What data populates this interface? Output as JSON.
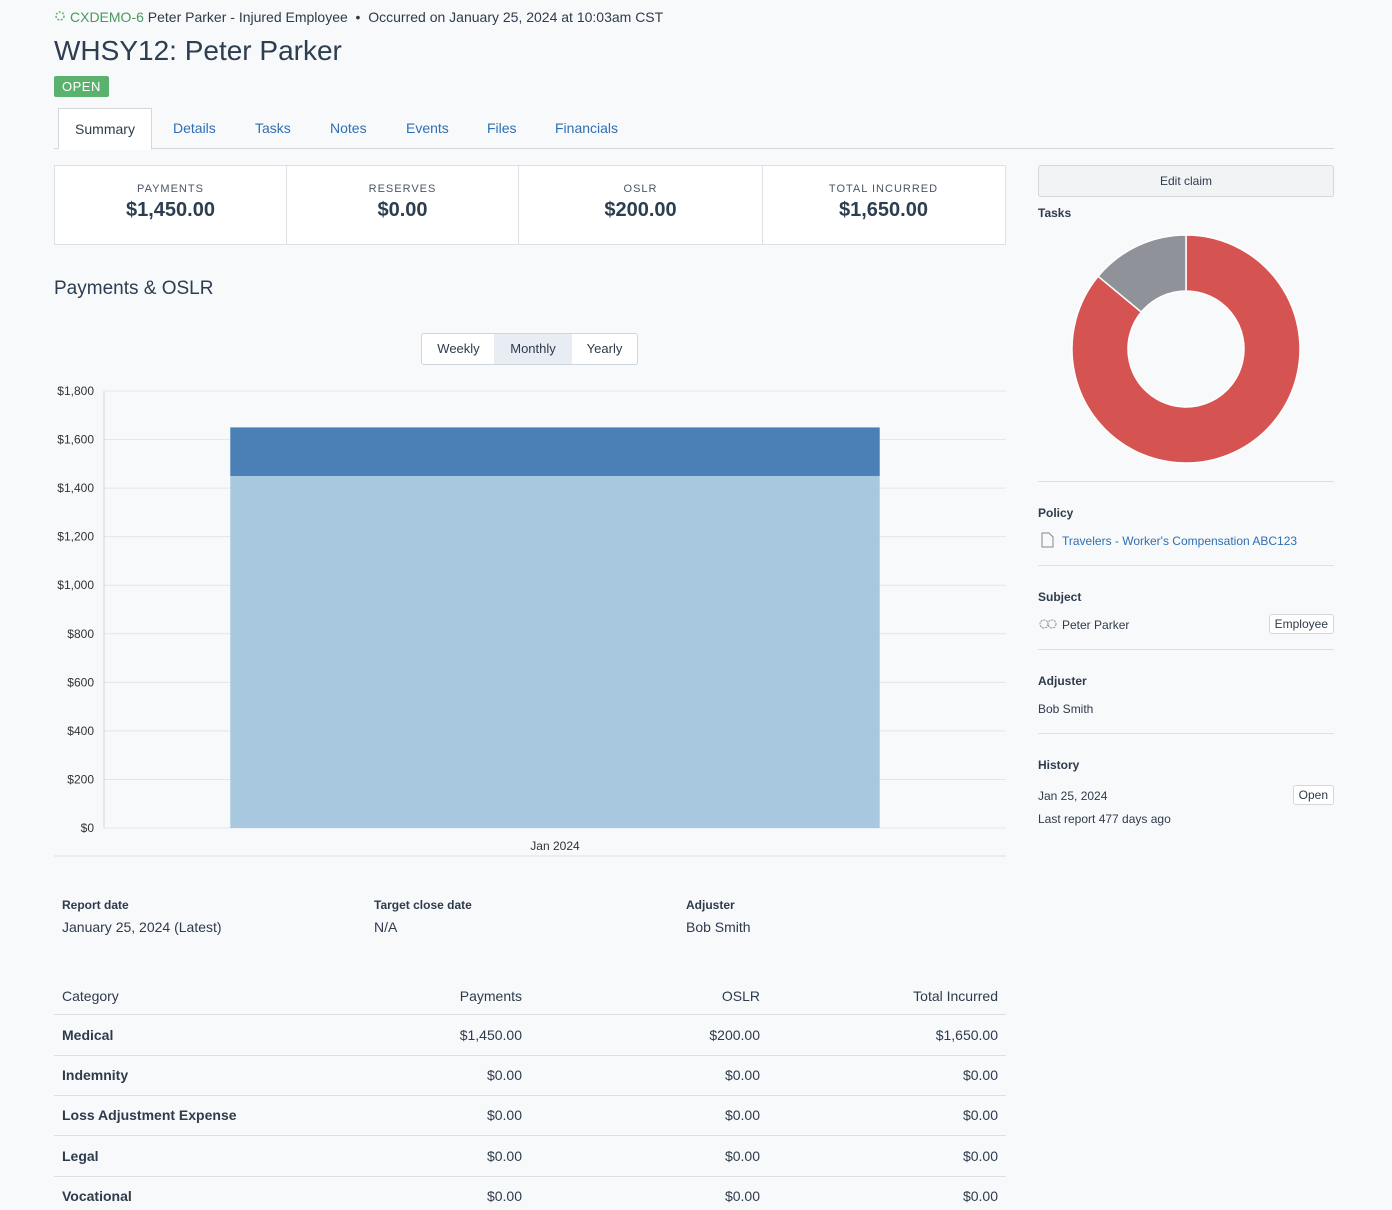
{
  "header": {
    "claim_code": "CXDEMO-6",
    "claim_name": "Peter Parker - Injured Employee",
    "occurred": "Occurred on January 25, 2024 at 10:03am CST",
    "title": "WHSY12: Peter Parker",
    "status": "OPEN"
  },
  "tabs": [
    "Summary",
    "Details",
    "Tasks",
    "Notes",
    "Events",
    "Files",
    "Financials"
  ],
  "summary": [
    {
      "label": "PAYMENTS",
      "value": "$1,450.00"
    },
    {
      "label": "RESERVES",
      "value": "$0.00"
    },
    {
      "label": "OSLR",
      "value": "$200.00"
    },
    {
      "label": "TOTAL INCURRED",
      "value": "$1,650.00"
    }
  ],
  "section_title": "Payments & OSLR",
  "periods": [
    "Weekly",
    "Monthly",
    "Yearly"
  ],
  "chart_data": [
    {
      "type": "stacked-bar",
      "categories": [
        "Jan 2024"
      ],
      "series": [
        {
          "color": "#a8c8df",
          "values": [
            1450
          ]
        },
        {
          "color": "#4a80b5",
          "values": [
            200
          ]
        }
      ],
      "ylim": [
        0,
        1800
      ],
      "yticks": [
        {
          "value": 0,
          "label": "$0"
        },
        {
          "value": 200,
          "label": "$200"
        },
        {
          "value": 400,
          "label": "$400"
        },
        {
          "value": 600,
          "label": "$600"
        },
        {
          "value": 800,
          "label": "$800"
        },
        {
          "value": 1000,
          "label": "$1,000"
        },
        {
          "value": 1200,
          "label": "$1,200"
        },
        {
          "value": 1400,
          "label": "$1,400"
        },
        {
          "value": 1600,
          "label": "$1,600"
        },
        {
          "value": 1800,
          "label": "$1,800"
        }
      ],
      "grid": true
    },
    {
      "type": "donut",
      "title": "Tasks",
      "categories": [
        null,
        null
      ],
      "values": [
        86,
        14
      ],
      "colors": [
        "#d55452",
        "#8f9299"
      ]
    }
  ],
  "sidebar": {
    "edit": "Edit claim",
    "policy": {
      "label": "Policy",
      "value": "Travelers - Worker's Compensation ABC123"
    },
    "subject": {
      "label": "Subject",
      "name": "Peter Parker",
      "role": "Employee"
    },
    "adjuster": {
      "label": "Adjuster",
      "name": "Bob Smith"
    },
    "history": {
      "label": "History",
      "date": "Jan 25, 2024",
      "status": "Open",
      "last_report": "Last report 477 days ago"
    }
  },
  "report": [
    {
      "label": "Report date",
      "value": "January 25, 2024 (Latest)"
    },
    {
      "label": "Target close date",
      "value": "N/A"
    },
    {
      "label": "Adjuster",
      "value": "Bob Smith"
    }
  ],
  "table": {
    "header": [
      "Category",
      "Payments",
      "OSLR",
      "Total Incurred"
    ],
    "rows": [
      [
        "Medical",
        "$1,450.00",
        "$200.00",
        "$1,650.00"
      ],
      [
        "Indemnity",
        "$0.00",
        "$0.00",
        "$0.00"
      ],
      [
        "Loss Adjustment Expense",
        "$0.00",
        "$0.00",
        "$0.00"
      ],
      [
        "Legal",
        "$0.00",
        "$0.00",
        "$0.00"
      ],
      [
        "Vocational",
        "$0.00",
        "$0.00",
        "$0.00"
      ]
    ]
  }
}
